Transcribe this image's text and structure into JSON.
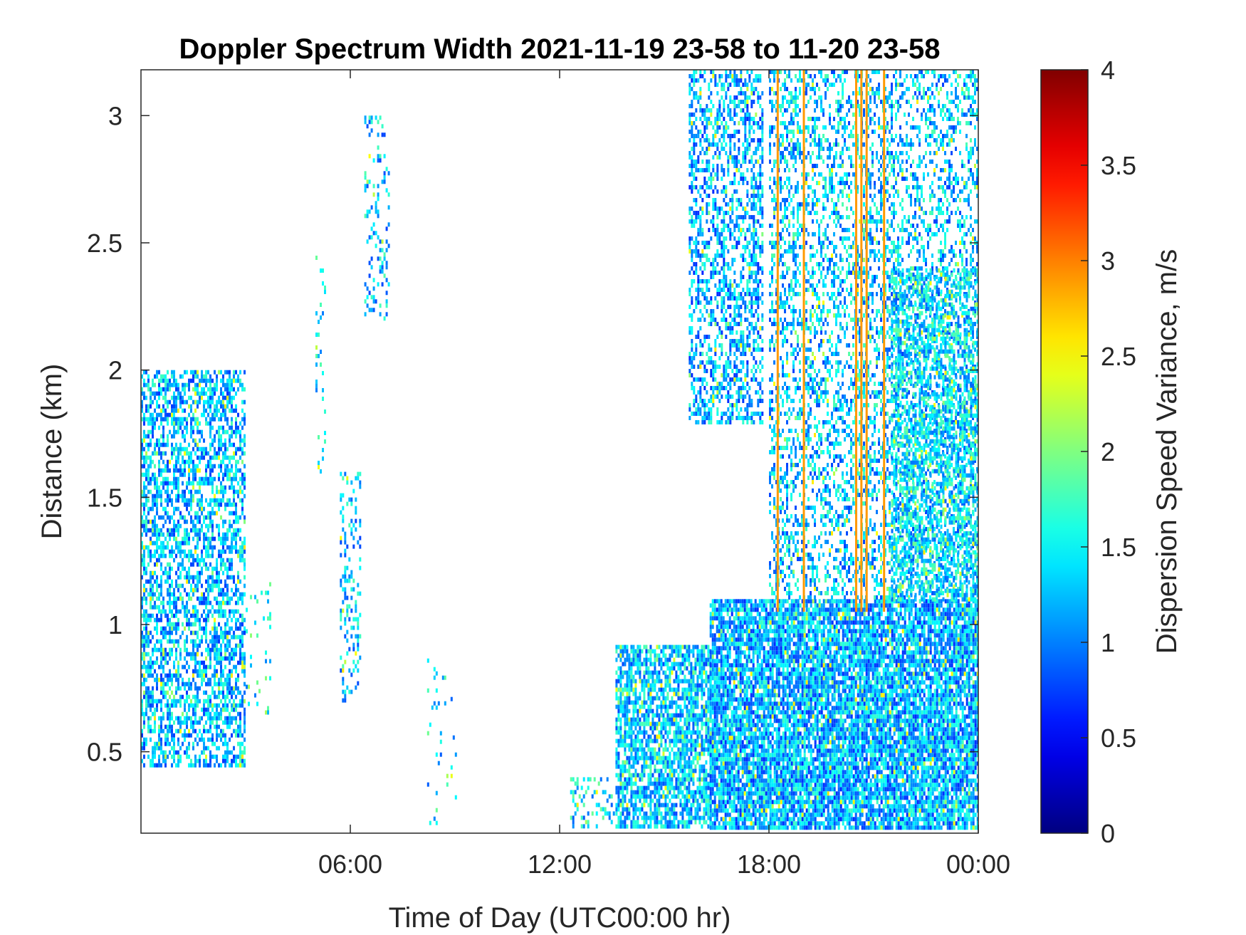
{
  "chart_data": {
    "type": "heatmap",
    "title": "Doppler Spectrum Width 2021-11-19 23-58 to 11-20 23-58",
    "xlabel": "Time of Day (UTC00:00 hr)",
    "ylabel": "Distance (km)",
    "x_unit": "hours since 23:58 on 2021-11-19",
    "xlim": [
      0,
      24
    ],
    "ylim": [
      0.18,
      3.18
    ],
    "x_ticks": [
      {
        "value": 6,
        "label": "06:00"
      },
      {
        "value": 12,
        "label": "12:00"
      },
      {
        "value": 18,
        "label": "18:00"
      },
      {
        "value": 24,
        "label": "00:00"
      }
    ],
    "y_ticks": [
      {
        "value": 0.5,
        "label": "0.5"
      },
      {
        "value": 1,
        "label": "1"
      },
      {
        "value": 1.5,
        "label": "1.5"
      },
      {
        "value": 2,
        "label": "2"
      },
      {
        "value": 2.5,
        "label": "2.5"
      },
      {
        "value": 3,
        "label": "3"
      }
    ],
    "colorbar": {
      "label": "Dispersion Speed Variance, m/s",
      "colormap": "jet",
      "clim": [
        0,
        4
      ],
      "ticks": [
        {
          "value": 0,
          "label": "0"
        },
        {
          "value": 0.5,
          "label": "0.5"
        },
        {
          "value": 1,
          "label": "1"
        },
        {
          "value": 1.5,
          "label": "1.5"
        },
        {
          "value": 2,
          "label": "2"
        },
        {
          "value": 2.5,
          "label": "2.5"
        },
        {
          "value": 3,
          "label": "3"
        },
        {
          "value": 3.5,
          "label": "3.5"
        },
        {
          "value": 4,
          "label": "4"
        }
      ]
    },
    "grid": false,
    "regions": [
      {
        "x": [
          0,
          3.0
        ],
        "y": [
          0.45,
          2.0
        ],
        "density": 0.55,
        "mean": 1.25
      },
      {
        "x": [
          3.0,
          3.7
        ],
        "y": [
          0.65,
          1.2
        ],
        "density": 0.08,
        "mean": 1.5
      },
      {
        "x": [
          5.0,
          5.3
        ],
        "y": [
          1.6,
          2.5
        ],
        "density": 0.12,
        "mean": 1.4
      },
      {
        "x": [
          5.7,
          6.3
        ],
        "y": [
          0.7,
          1.6
        ],
        "density": 0.25,
        "mean": 1.3
      },
      {
        "x": [
          6.4,
          7.1
        ],
        "y": [
          2.2,
          3.0
        ],
        "density": 0.2,
        "mean": 1.3
      },
      {
        "x": [
          8.2,
          9.0
        ],
        "y": [
          0.2,
          0.9
        ],
        "density": 0.06,
        "mean": 1.4
      },
      {
        "x": [
          12.3,
          13.6
        ],
        "y": [
          0.2,
          0.4
        ],
        "density": 0.2,
        "mean": 1.4
      },
      {
        "x": [
          13.6,
          16.3
        ],
        "y": [
          0.2,
          0.92
        ],
        "density": 0.72,
        "mean": 1.3
      },
      {
        "x": [
          15.7,
          17.8
        ],
        "y": [
          1.8,
          3.18
        ],
        "density": 0.45,
        "mean": 1.2
      },
      {
        "x": [
          16.3,
          24.0
        ],
        "y": [
          0.2,
          1.1
        ],
        "density": 0.85,
        "mean": 1.2
      },
      {
        "x": [
          18.0,
          24.0
        ],
        "y": [
          1.1,
          3.18
        ],
        "density": 0.35,
        "mean": 1.3
      },
      {
        "x": [
          21.5,
          24.0
        ],
        "y": [
          1.1,
          2.4
        ],
        "density": 0.5,
        "mean": 1.4
      }
    ],
    "streaks": [
      {
        "x": 18.25,
        "y": [
          1.05,
          3.18
        ],
        "value": 2.9
      },
      {
        "x": 19.0,
        "y": [
          1.05,
          3.18
        ],
        "value": 2.9
      },
      {
        "x": 20.5,
        "y": [
          1.05,
          3.18
        ],
        "value": 2.9
      },
      {
        "x": 20.65,
        "y": [
          1.05,
          3.18
        ],
        "value": 2.9
      },
      {
        "x": 20.8,
        "y": [
          1.05,
          3.18
        ],
        "value": 2.9
      },
      {
        "x": 21.3,
        "y": [
          1.05,
          3.18
        ],
        "value": 2.9
      }
    ]
  }
}
